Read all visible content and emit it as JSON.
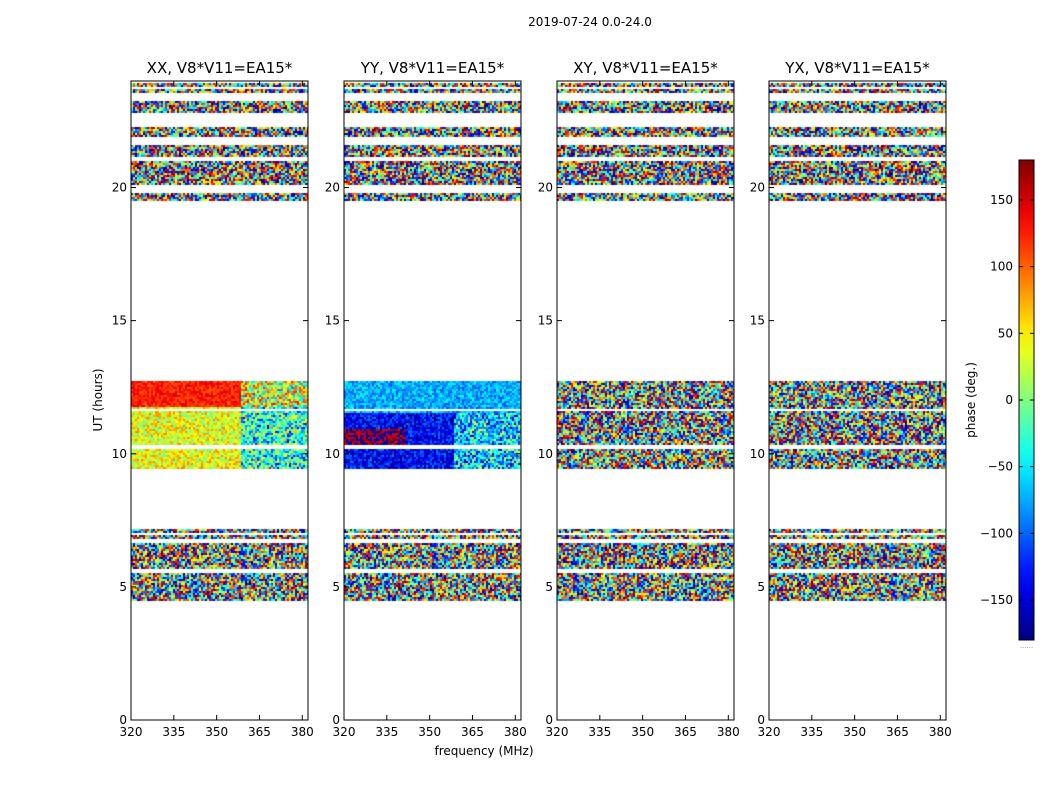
{
  "figure": {
    "suptitle": "2019-07-24 0.0-24.0",
    "xlabel": "frequency (MHz)",
    "ylabel": "UT (hours)",
    "colorbar_label": "phase (deg.)",
    "colorbar_ticks": [
      "150",
      "100",
      "50",
      "0",
      "−50",
      "−100",
      "−150"
    ],
    "colorbar_tick_values": [
      150,
      100,
      50,
      0,
      -50,
      -100,
      -150
    ],
    "colorbar_range": [
      -180,
      180
    ],
    "colorbar_under_text": "......"
  },
  "chart_data": [
    {
      "type": "heatmap",
      "title": "XX, V8*V11=EA15*",
      "xlabel": "",
      "ylabel": "UT (hours)",
      "xlim": [
        320,
        382
      ],
      "ylim": [
        0,
        24
      ],
      "x_ticks": [
        320,
        335,
        350,
        365,
        380
      ],
      "y_ticks": [
        0,
        5,
        10,
        15,
        20
      ],
      "x_tick_labels": [
        "320",
        "335",
        "350",
        "365",
        "380"
      ],
      "y_tick_labels": [
        "0",
        "5",
        "10",
        "15",
        "20"
      ],
      "data_time_bands_hours": [
        [
          4.5,
          7.2
        ],
        [
          9.5,
          12.8
        ],
        [
          19.5,
          24.0
        ]
      ],
      "phase_profile": "warm: ~0 to +100 deg, band 11.8-12.8 h near +120 deg"
    },
    {
      "type": "heatmap",
      "title": "YY, V8*V11=EA15*",
      "xlabel": "frequency (MHz)",
      "ylabel": "",
      "xlim": [
        320,
        382
      ],
      "ylim": [
        0,
        24
      ],
      "x_ticks": [
        320,
        335,
        350,
        365,
        380
      ],
      "y_ticks": [
        0,
        5,
        10,
        15,
        20
      ],
      "x_tick_labels": [
        "320",
        "335",
        "350",
        "365",
        "380"
      ],
      "y_tick_labels": [
        "0",
        "5",
        "10",
        "15",
        "20"
      ],
      "data_time_bands_hours": [
        [
          4.5,
          7.2
        ],
        [
          9.5,
          12.8
        ],
        [
          19.5,
          24.0
        ]
      ],
      "phase_profile": "cool: ~-80 to -170 deg, red streaks near 10.5 h"
    },
    {
      "type": "heatmap",
      "title": "XY, V8*V11=EA15*",
      "xlabel": "",
      "ylabel": "",
      "xlim": [
        320,
        382
      ],
      "ylim": [
        0,
        24
      ],
      "x_ticks": [
        320,
        335,
        350,
        365,
        380
      ],
      "y_ticks": [
        0,
        5,
        10,
        15,
        20
      ],
      "x_tick_labels": [
        "320",
        "335",
        "350",
        "365",
        "380"
      ],
      "y_tick_labels": [
        "0",
        "5",
        "10",
        "15",
        "20"
      ],
      "data_time_bands_hours": [
        [
          4.5,
          7.2
        ],
        [
          9.5,
          12.8
        ],
        [
          19.5,
          24.0
        ]
      ],
      "phase_profile": "noise: uniform -180 to +180 deg"
    },
    {
      "type": "heatmap",
      "title": "YX, V8*V11=EA15*",
      "xlabel": "",
      "ylabel": "",
      "xlim": [
        320,
        382
      ],
      "ylim": [
        0,
        24
      ],
      "x_ticks": [
        320,
        335,
        350,
        365,
        380
      ],
      "y_ticks": [
        0,
        5,
        10,
        15,
        20
      ],
      "x_tick_labels": [
        "320",
        "335",
        "350",
        "365",
        "380"
      ],
      "y_tick_labels": [
        "0",
        "5",
        "10",
        "15",
        "20"
      ],
      "data_time_bands_hours": [
        [
          4.5,
          7.2
        ],
        [
          9.5,
          12.8
        ],
        [
          19.5,
          24.0
        ]
      ],
      "phase_profile": "noise: uniform -180 to +180 deg"
    }
  ]
}
